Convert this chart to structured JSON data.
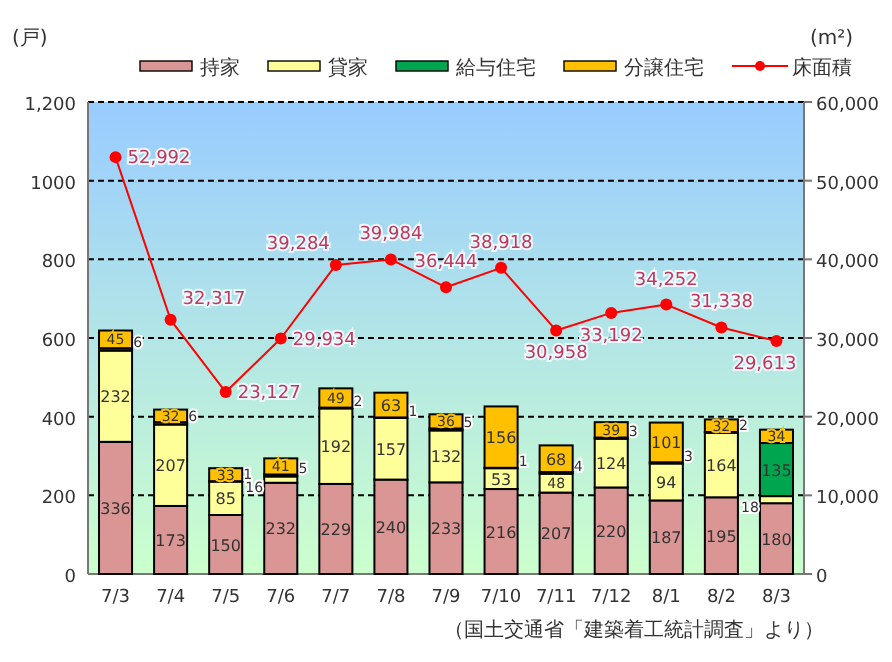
{
  "chart_data": {
    "type": "bar",
    "stacked": true,
    "categories": [
      "7/3",
      "7/4",
      "7/5",
      "7/6",
      "7/7",
      "7/8",
      "7/9",
      "7/10",
      "7/11",
      "7/12",
      "8/1",
      "8/2",
      "8/3"
    ],
    "series": [
      {
        "name": "持家",
        "color": "#d99694",
        "values": [
          336,
          173,
          150,
          232,
          229,
          240,
          233,
          216,
          207,
          220,
          187,
          195,
          180
        ]
      },
      {
        "name": "貸家",
        "color": "#ffff99",
        "values": [
          232,
          207,
          85,
          16,
          192,
          157,
          132,
          53,
          48,
          124,
          94,
          164,
          18
        ]
      },
      {
        "name": "給与住宅",
        "color": "#00a550",
        "values": [
          6,
          6,
          1,
          5,
          2,
          1,
          5,
          1,
          4,
          3,
          3,
          2,
          135
        ]
      },
      {
        "name": "分譲住宅",
        "color": "#ffc000",
        "values": [
          45,
          32,
          33,
          41,
          49,
          63,
          36,
          156,
          68,
          39,
          101,
          32,
          34
        ]
      },
      {
        "name": "床面積",
        "type": "line",
        "axis": "y2",
        "color": "#ff0000",
        "marker": "circle",
        "values": [
          52992,
          32317,
          23127,
          29934,
          39284,
          39984,
          36444,
          38918,
          30958,
          33192,
          34252,
          31338,
          29613
        ],
        "value_labels": [
          "52,992",
          "32,317",
          "23,127",
          "29,934",
          "39,284",
          "39,984",
          "36,444",
          "38,918",
          "30,958",
          "33,192",
          "34,252",
          "31,338",
          "29,613"
        ]
      }
    ],
    "ylim": [
      0,
      1200
    ],
    "yticks": [
      0,
      200,
      400,
      600,
      800,
      1000,
      {
        "value": 1200,
        "label": "1,200"
      }
    ],
    "y2lim": [
      0,
      60000
    ],
    "y2ticks": [
      0,
      {
        "value": 10000,
        "label": "10,000"
      },
      {
        "value": 20000,
        "label": "20,000"
      },
      {
        "value": 30000,
        "label": "30,000"
      },
      {
        "value": 40000,
        "label": "40,000"
      },
      {
        "value": 50000,
        "label": "50,000"
      },
      {
        "value": 60000,
        "label": "60,000"
      }
    ],
    "ylabel": "(戸)",
    "y2label": "(m²)",
    "grid": "y",
    "legend": "top",
    "data_labels": true,
    "annotations": [
      "（国土交通省「建築着工統計調査」より）"
    ]
  }
}
